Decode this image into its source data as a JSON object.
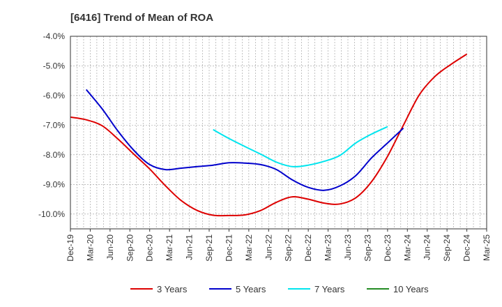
{
  "chart_data": {
    "type": "line",
    "title": "[6416]  Trend of Mean of ROA",
    "xlabel": "",
    "ylabel": "",
    "ylim": [
      -10.5,
      -4.0
    ],
    "y_ticks": [
      -4.0,
      -5.0,
      -6.0,
      -7.0,
      -8.0,
      -9.0,
      -10.0
    ],
    "y_tick_labels": [
      "-4.0%",
      "-5.0%",
      "-6.0%",
      "-7.0%",
      "-8.0%",
      "-9.0%",
      "-10.0%"
    ],
    "x_tick_labels": [
      "Dec-19",
      "Mar-20",
      "Jun-20",
      "Sep-20",
      "Dec-20",
      "Mar-21",
      "Jun-21",
      "Sep-21",
      "Dec-21",
      "Mar-22",
      "Jun-22",
      "Sep-22",
      "Dec-22",
      "Mar-23",
      "Jun-23",
      "Sep-23",
      "Dec-23",
      "Mar-24",
      "Jun-24",
      "Sep-24",
      "Dec-24",
      "Mar-25"
    ],
    "grid": true,
    "legend_position": "bottom",
    "series": [
      {
        "name": "3 Years",
        "color": "#dd0000",
        "points": [
          [
            0,
            -6.73
          ],
          [
            1,
            -6.82
          ],
          [
            2,
            -7.02
          ],
          [
            3,
            -7.47
          ],
          [
            4,
            -7.98
          ],
          [
            5,
            -8.48
          ],
          [
            6,
            -9.05
          ],
          [
            7,
            -9.55
          ],
          [
            8,
            -9.88
          ],
          [
            9,
            -10.04
          ],
          [
            10,
            -10.05
          ],
          [
            11,
            -10.03
          ],
          [
            12,
            -9.88
          ],
          [
            13,
            -9.6
          ],
          [
            14,
            -9.42
          ],
          [
            15,
            -9.5
          ],
          [
            16,
            -9.63
          ],
          [
            17,
            -9.66
          ],
          [
            18,
            -9.45
          ],
          [
            19,
            -8.9
          ],
          [
            20,
            -8.05
          ],
          [
            21,
            -7.0
          ],
          [
            22,
            -5.98
          ],
          [
            23,
            -5.35
          ],
          [
            24,
            -4.95
          ],
          [
            25,
            -4.6
          ]
        ]
      },
      {
        "name": "5 Years",
        "color": "#0000cc",
        "points": [
          [
            1,
            -5.8
          ],
          [
            2,
            -6.45
          ],
          [
            3,
            -7.2
          ],
          [
            4,
            -7.85
          ],
          [
            5,
            -8.33
          ],
          [
            6,
            -8.5
          ],
          [
            7,
            -8.45
          ],
          [
            8,
            -8.4
          ],
          [
            9,
            -8.35
          ],
          [
            10,
            -8.27
          ],
          [
            11,
            -8.28
          ],
          [
            12,
            -8.33
          ],
          [
            13,
            -8.5
          ],
          [
            14,
            -8.85
          ],
          [
            15,
            -9.1
          ],
          [
            16,
            -9.2
          ],
          [
            17,
            -9.05
          ],
          [
            18,
            -8.7
          ],
          [
            19,
            -8.1
          ],
          [
            20,
            -7.6
          ],
          [
            21,
            -7.1
          ]
        ]
      },
      {
        "name": "7 Years",
        "color": "#00e5ee",
        "points": [
          [
            9,
            -7.15
          ],
          [
            10,
            -7.45
          ],
          [
            11,
            -7.72
          ],
          [
            12,
            -7.98
          ],
          [
            13,
            -8.25
          ],
          [
            14,
            -8.4
          ],
          [
            15,
            -8.35
          ],
          [
            16,
            -8.22
          ],
          [
            17,
            -8.02
          ],
          [
            18,
            -7.6
          ],
          [
            19,
            -7.3
          ],
          [
            20,
            -7.05
          ]
        ]
      },
      {
        "name": "10 Years",
        "color": "#228b22",
        "points": []
      }
    ]
  }
}
